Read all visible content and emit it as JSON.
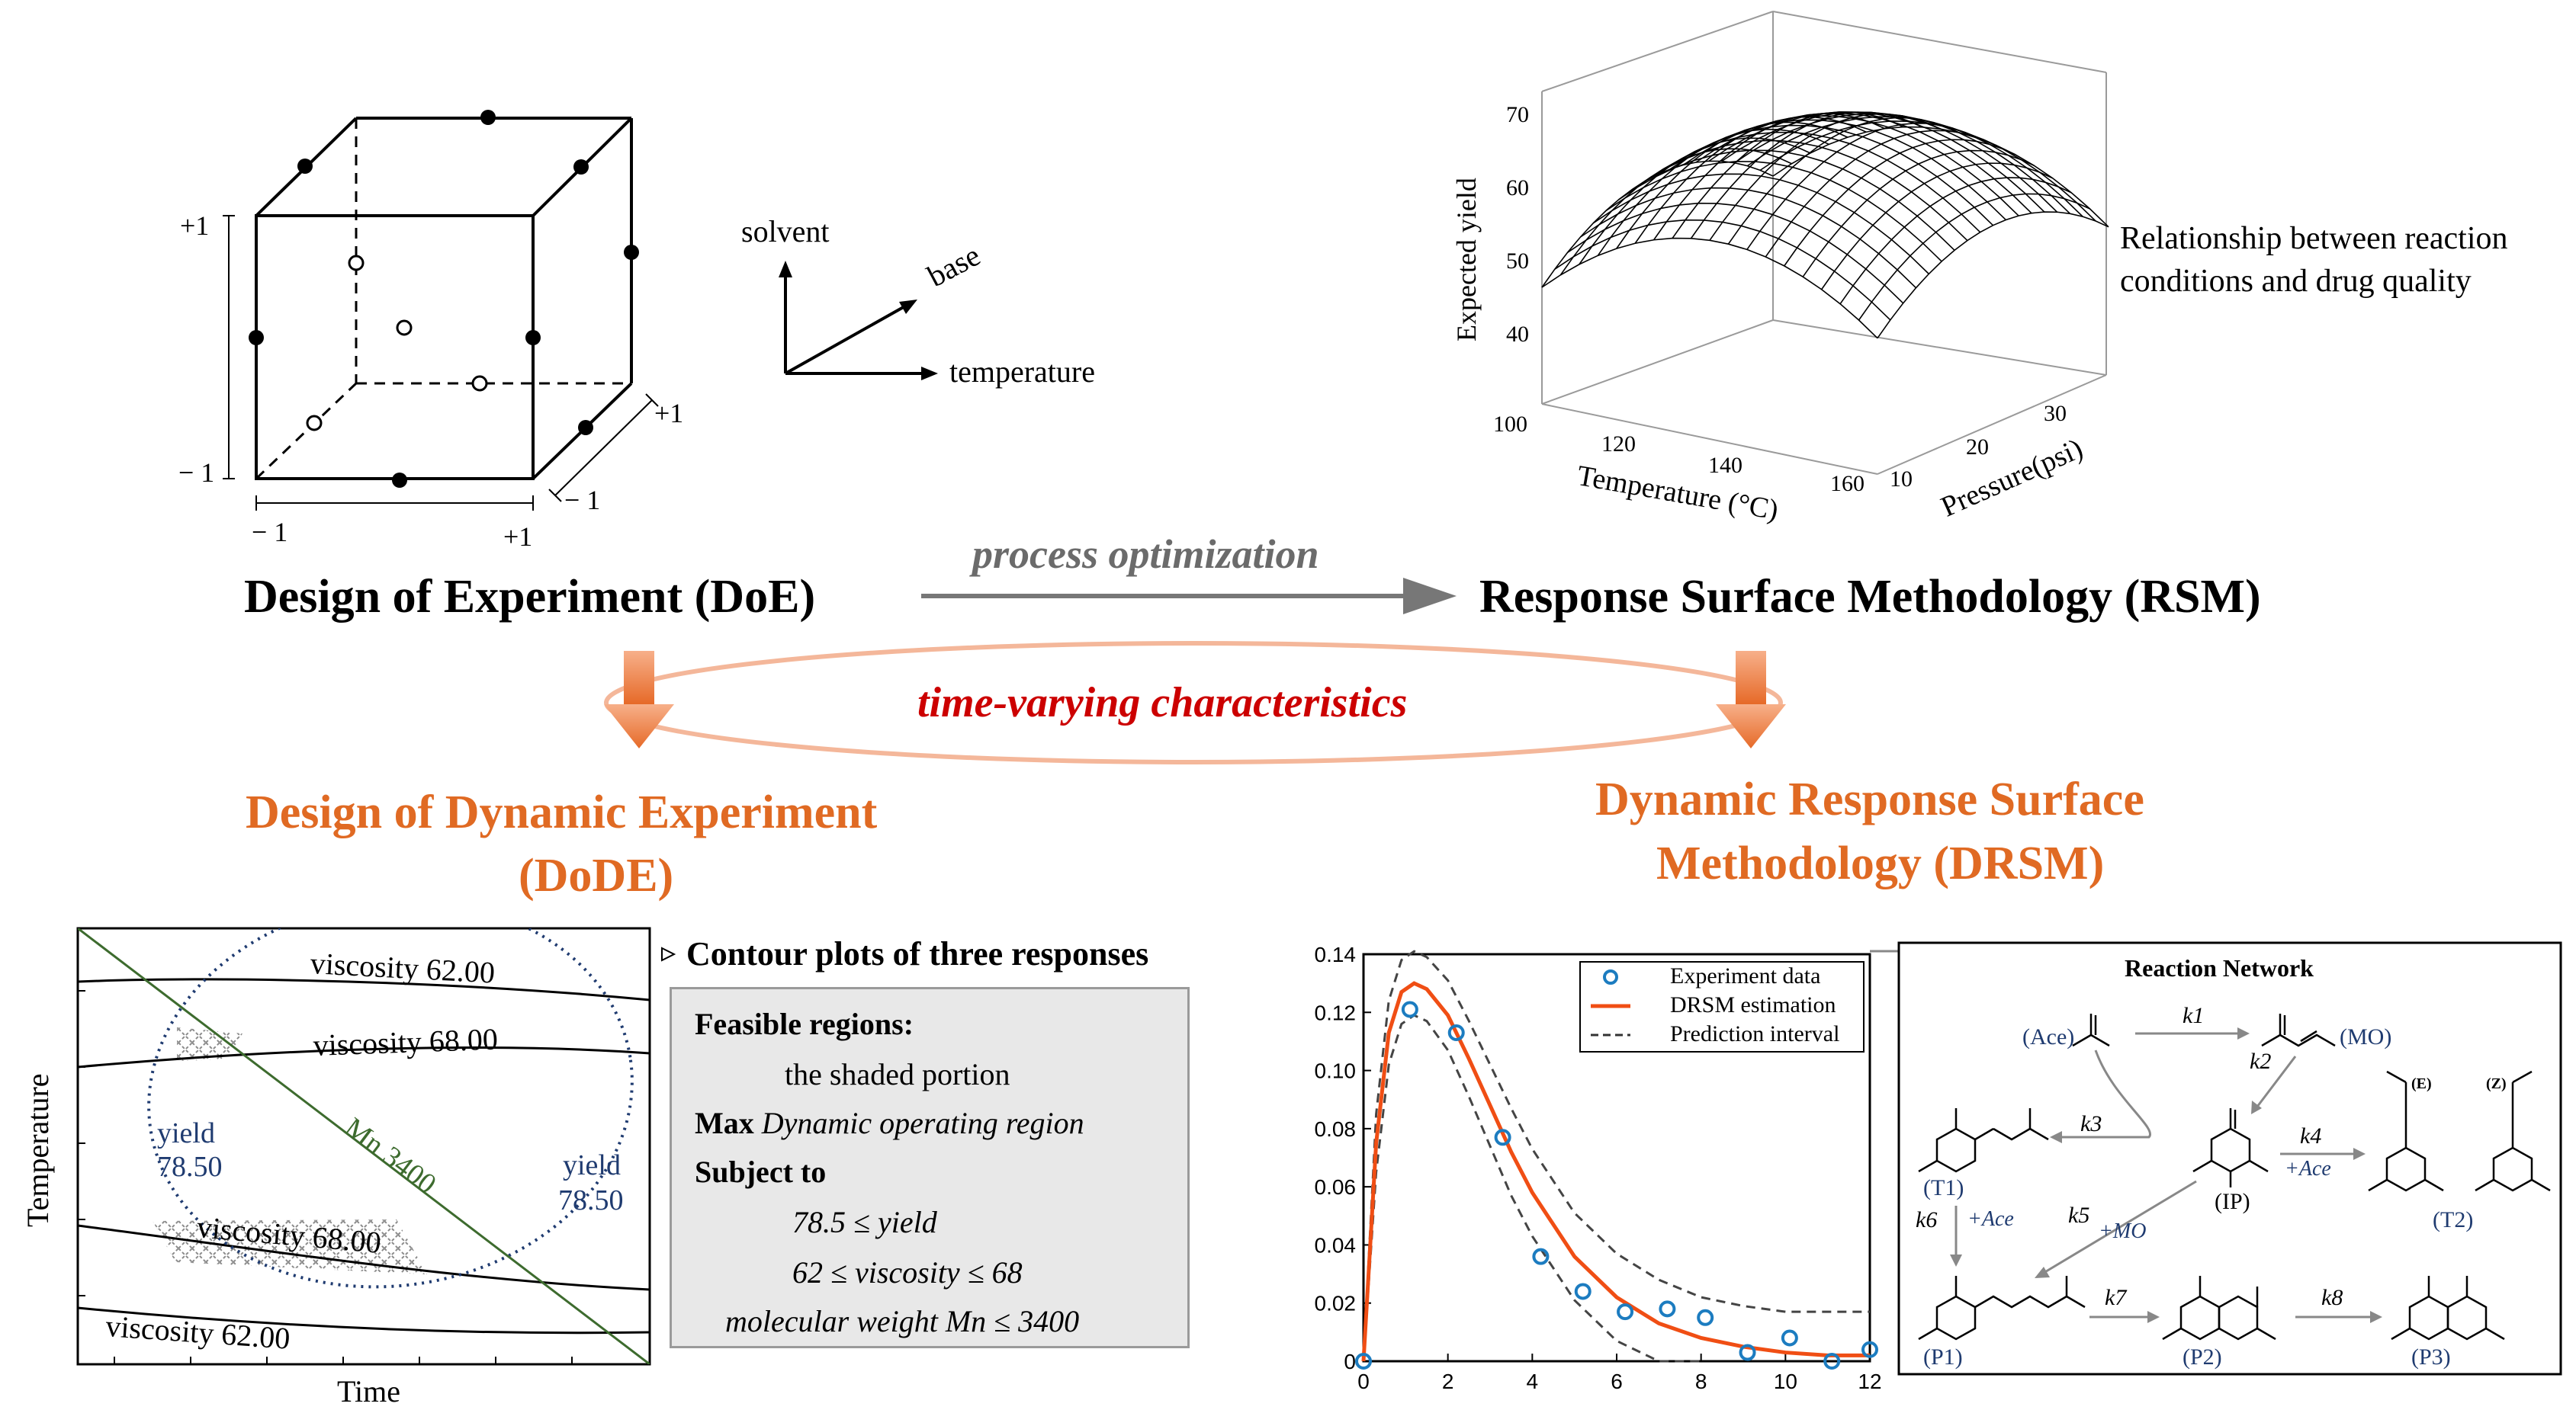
{
  "doe": {
    "heading": "Design of Experiment (DoE)",
    "axes": {
      "solvent": "solvent",
      "base": "base",
      "temperature": "temperature"
    },
    "cube_labels": {
      "plus1_left": "+1",
      "minus1_left": "− 1",
      "minus1_bottom": "− 1",
      "plus1_bottom": "+1",
      "plus1_depth": "+1",
      "minus1_depth": "− 1"
    }
  },
  "rsm": {
    "heading": "Response Surface Methodology (RSM)",
    "caption_line1": "Relationship between reaction",
    "caption_line2": "conditions and drug quality",
    "zlabel": "Expected yield",
    "zticks": [
      "70",
      "60",
      "50",
      "40"
    ],
    "xlabel": "Temperature (°C)",
    "xticks": [
      "100",
      "120",
      "140",
      "160"
    ],
    "ylabel": "Pressure(psi)",
    "yticks": [
      "10",
      "20",
      "30"
    ]
  },
  "links": {
    "process_optimization": "process optimization",
    "time_varying": "time-varying characteristics"
  },
  "dode": {
    "heading_line1": "Design of Dynamic Experiment",
    "heading_line2": "(DoDE)"
  },
  "drsm": {
    "heading_line1": "Dynamic Response Surface",
    "heading_line2": "Methodology (DRSM)"
  },
  "contour": {
    "title": "Contour plots of three responses",
    "xlabel": "Time",
    "ylabel": "Temperature",
    "labels": {
      "visc_62_top": "viscosity 62.00",
      "visc_68_top": "viscosity 68.00",
      "visc_68_bottom": "viscosity 68.00",
      "visc_62_bottom": "viscosity 62.00",
      "yield_left_1": "yield",
      "yield_left_2": "78.50",
      "yield_right_1": "yield",
      "yield_right_2": "78.50",
      "mn": "Mn 3400"
    },
    "box": {
      "feasible": "Feasible regions:",
      "shaded": "the shaded portion",
      "max_word": "Max",
      "max_rest": "Dynamic operating region",
      "subject": "Subject to",
      "c1": "78.5 ≤ yield",
      "c2": "62 ≤ viscosity ≤ 68",
      "c3": "molecular weight Mn ≤ 3400"
    }
  },
  "chart_data": {
    "type": "line",
    "title": "",
    "xlabel": "",
    "ylabel": "",
    "xlim": [
      0,
      12
    ],
    "ylim": [
      0,
      0.14
    ],
    "xticks": [
      "0",
      "2",
      "4",
      "6",
      "8",
      "10",
      "12"
    ],
    "yticks": [
      "0",
      "0.02",
      "0.04",
      "0.06",
      "0.08",
      "0.10",
      "0.12",
      "0.14"
    ],
    "legend": [
      "Experiment data",
      "DRSM estimation",
      "Prediction interval"
    ],
    "legend_position": "top-right",
    "series": [
      {
        "name": "Experiment data",
        "style": "markers",
        "x": [
          0,
          1.1,
          2.2,
          3.3,
          4.2,
          5.2,
          6.2,
          7.2,
          8.1,
          9.1,
          10.1,
          11.1,
          12
        ],
        "y": [
          0.0,
          0.121,
          0.113,
          0.077,
          0.036,
          0.024,
          0.017,
          0.018,
          0.015,
          0.003,
          0.008,
          0.0,
          0.004
        ]
      },
      {
        "name": "DRSM estimation",
        "style": "solid",
        "x": [
          0,
          0.3,
          0.6,
          0.9,
          1.2,
          1.5,
          2,
          2.5,
          3,
          3.5,
          4,
          5,
          6,
          7,
          8,
          9,
          10,
          11,
          12
        ],
        "y": [
          0,
          0.075,
          0.113,
          0.127,
          0.13,
          0.128,
          0.119,
          0.104,
          0.088,
          0.072,
          0.058,
          0.036,
          0.022,
          0.013,
          0.008,
          0.005,
          0.003,
          0.002,
          0.002
        ]
      },
      {
        "name": "Prediction interval upper",
        "style": "dashed",
        "x": [
          0,
          0.3,
          0.6,
          0.9,
          1.2,
          1.5,
          2,
          2.5,
          3,
          3.5,
          4,
          5,
          6,
          7,
          8,
          9,
          10,
          11,
          12
        ],
        "y": [
          0,
          0.085,
          0.124,
          0.138,
          0.141,
          0.139,
          0.131,
          0.117,
          0.102,
          0.087,
          0.073,
          0.051,
          0.037,
          0.028,
          0.022,
          0.019,
          0.017,
          0.017,
          0.017
        ]
      },
      {
        "name": "Prediction interval lower",
        "style": "dashed",
        "x": [
          0,
          0.3,
          0.6,
          0.9,
          1.2,
          1.5,
          2,
          2.5,
          3,
          3.5,
          4,
          5,
          6,
          7,
          8
        ],
        "y": [
          0,
          0.065,
          0.102,
          0.116,
          0.119,
          0.117,
          0.107,
          0.091,
          0.074,
          0.057,
          0.043,
          0.021,
          0.007,
          0.0,
          0.0
        ]
      }
    ]
  },
  "network": {
    "title": "Reaction  Network",
    "species": {
      "ace": "(Ace)",
      "mo": "(MO)",
      "t1": "(T1)",
      "ip": "(IP)",
      "t2": "(T2)",
      "p1": "(P1)",
      "p2": "(P2)",
      "p3": "(P3)",
      "e": "(E)",
      "z": "(Z)"
    },
    "rates": {
      "k1": "k1",
      "k2": "k2",
      "k3": "k3",
      "k4": "k4",
      "k5": "k5",
      "k6": "k6",
      "k7": "k7",
      "k8": "k8"
    },
    "reagents": {
      "ace4": "+Ace",
      "ace6": "+Ace",
      "mo5": "+MO"
    }
  },
  "colors": {
    "orange": "#e06a23",
    "red": "#cc0000",
    "navy": "#1f3b70",
    "green": "#3d6b2e",
    "curve": "#f04e14",
    "marker": "#1c7cc0"
  }
}
